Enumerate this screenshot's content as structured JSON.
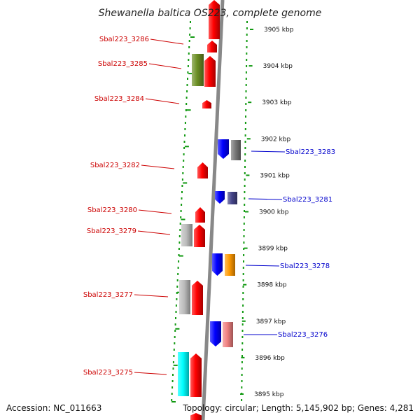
{
  "title": "Shewanella baltica OS223, complete genome",
  "accession": "Accession: NC_011663",
  "topology": "Topology: circular; Length: 5,145,902 bp; Genes: 4,281",
  "colors": {
    "left_label": "#cc0000",
    "right_label": "#0000cc",
    "tick": "#119911",
    "backbone": "#888888",
    "cds_forward": "#ff0000",
    "cds_reverse": "#0000ff"
  },
  "ticks": [
    "3905 kbp",
    "3904 kbp",
    "3903 kbp",
    "3902 kbp",
    "3901 kbp",
    "3900 kbp",
    "3899 kbp",
    "3898 kbp",
    "3897 kbp",
    "3896 kbp",
    "3895 kbp"
  ],
  "left_labels": [
    "Sbal223_3286",
    "Sbal223_3285",
    "Sbal223_3284",
    "Sbal223_3282",
    "Sbal223_3280",
    "Sbal223_3279",
    "Sbal223_3277",
    "Sbal223_3275"
  ],
  "right_labels": [
    "Sbal223_3283",
    "Sbal223_3281",
    "Sbal223_3278",
    "Sbal223_3276"
  ],
  "features": [
    {
      "strand": "+",
      "color": "#ff0000"
    },
    {
      "strand": "+",
      "color": "#ff0000"
    },
    {
      "strand": "+",
      "color": "#ff0000"
    },
    {
      "strand": "+",
      "color": "#6b8e23"
    },
    {
      "strand": "+",
      "color": "#ff0000"
    },
    {
      "strand": "-",
      "color": "#0000ff"
    },
    {
      "strand": "-",
      "color": "#777777"
    },
    {
      "strand": "+",
      "color": "#ff0000"
    },
    {
      "strand": "-",
      "color": "#0000ff"
    },
    {
      "strand": "-",
      "color": "#444488"
    },
    {
      "strand": "+",
      "color": "#ff0000"
    },
    {
      "strand": "+",
      "color": "#bbbbbb"
    },
    {
      "strand": "+",
      "color": "#ff0000"
    },
    {
      "strand": "-",
      "color": "#0000ff"
    },
    {
      "strand": "-",
      "color": "#ff9900"
    },
    {
      "strand": "+",
      "color": "#bbbbbb"
    },
    {
      "strand": "+",
      "color": "#ff0000"
    },
    {
      "strand": "-",
      "color": "#0000ff"
    },
    {
      "strand": "-",
      "color": "#f08080"
    },
    {
      "strand": "+",
      "color": "#00ffff"
    },
    {
      "strand": "+",
      "color": "#ff0000"
    },
    {
      "strand": "+",
      "color": "#ff0000"
    }
  ]
}
